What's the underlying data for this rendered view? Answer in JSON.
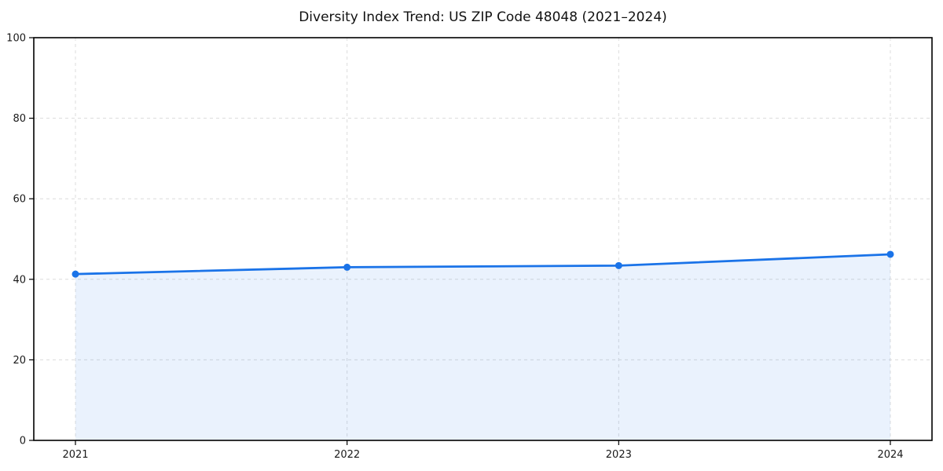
{
  "chart_data": {
    "type": "area",
    "title": "Diversity Index Trend: US ZIP Code 48048 (2021–2024)",
    "categories": [
      "2021",
      "2022",
      "2023",
      "2024"
    ],
    "x": [
      2021,
      2022,
      2023,
      2024
    ],
    "values": [
      41.3,
      43.0,
      43.4,
      46.2
    ],
    "series_name": "Diversity Index",
    "xlabel": "",
    "ylabel": "",
    "ylim": [
      0,
      100
    ],
    "yticks": [
      0,
      20,
      40,
      60,
      80,
      100
    ],
    "grid": true,
    "grid_style": "dashed",
    "legend": false,
    "colors": {
      "line": "#1a73e8",
      "marker": "#1a73e8",
      "fill": "rgba(26,115,232,0.09)",
      "grid": "#dcdcdc",
      "spine": "#000000",
      "tick_label": "#1a1a1a"
    }
  }
}
